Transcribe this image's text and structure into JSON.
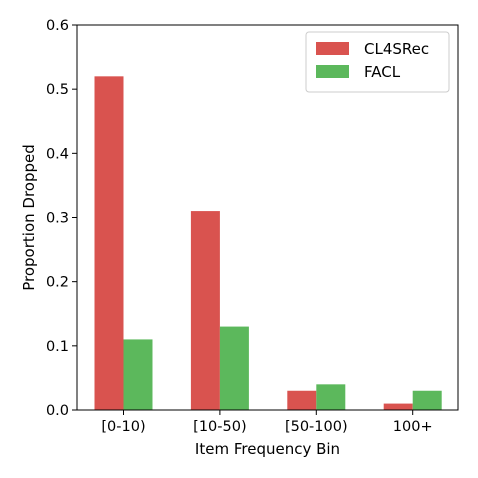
{
  "chart_data": {
    "type": "bar",
    "categories": [
      "[0-10)",
      "[10-50)",
      "[50-100)",
      "100+"
    ],
    "series": [
      {
        "name": "CL4SRec",
        "values": [
          0.52,
          0.31,
          0.03,
          0.01
        ],
        "color": "#d9534f"
      },
      {
        "name": "FACL",
        "values": [
          0.11,
          0.13,
          0.04,
          0.03
        ],
        "color": "#5cb85c"
      }
    ],
    "xlabel": "Item Frequency Bin",
    "ylabel": "Proportion Dropped",
    "ylim": [
      0,
      0.6
    ],
    "yticks": [
      "0.0",
      "0.1",
      "0.2",
      "0.3",
      "0.4",
      "0.5",
      "0.6"
    ],
    "grid": false,
    "legend_position": "top-right"
  }
}
